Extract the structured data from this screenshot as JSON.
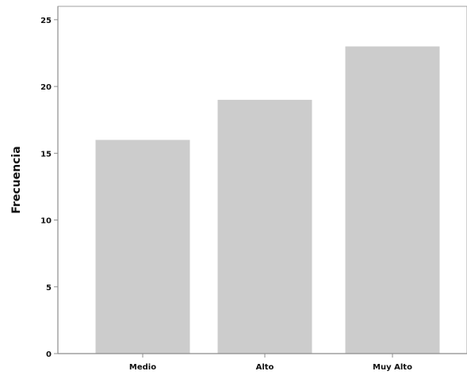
{
  "chart_data": {
    "type": "bar",
    "categories": [
      "Medio",
      "Alto",
      "Muy Alto"
    ],
    "values": [
      16,
      19,
      23
    ],
    "title": "",
    "xlabel": "",
    "ylabel": "Frecuencia",
    "ylim": [
      0,
      26
    ],
    "yticks": [
      0,
      5,
      10,
      15,
      20,
      25
    ],
    "ytick_labels": [
      "0",
      "5",
      "10",
      "15",
      "20",
      "25"
    ],
    "grid": false,
    "legend": "none",
    "colors": {
      "bar": "#cccccc",
      "axis": "#8c8c8c",
      "frame": "#a0a0a0",
      "text": "#111111"
    }
  }
}
